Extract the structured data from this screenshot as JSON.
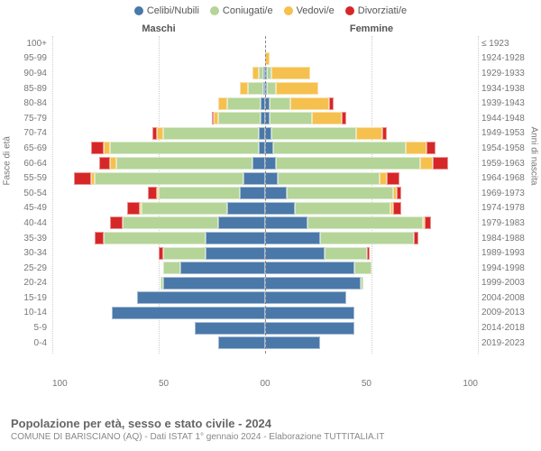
{
  "type": "population-pyramid",
  "legend": [
    {
      "label": "Celibi/Nubili",
      "color": "#4a78a8"
    },
    {
      "label": "Coniugati/e",
      "color": "#b4d498"
    },
    {
      "label": "Vedovi/e",
      "color": "#f5c04e"
    },
    {
      "label": "Divorziati/e",
      "color": "#d62728"
    }
  ],
  "headers": {
    "male": "Maschi",
    "female": "Femmine"
  },
  "age_bands": [
    "100+",
    "95-99",
    "90-94",
    "85-89",
    "80-84",
    "75-79",
    "70-74",
    "65-69",
    "60-64",
    "55-59",
    "50-54",
    "45-49",
    "40-44",
    "35-39",
    "30-34",
    "25-29",
    "20-24",
    "15-19",
    "10-14",
    "5-9",
    "0-4"
  ],
  "birth_years": [
    "≤ 1923",
    "1924-1928",
    "1929-1933",
    "1934-1938",
    "1939-1943",
    "1944-1948",
    "1949-1953",
    "1954-1958",
    "1959-1963",
    "1964-1968",
    "1969-1973",
    "1974-1978",
    "1979-1983",
    "1984-1988",
    "1989-1993",
    "1994-1998",
    "1999-2003",
    "2004-2008",
    "2009-2013",
    "2014-2018",
    "2019-2023"
  ],
  "x_max": 100,
  "x_ticks_left": [
    "100",
    "50",
    "0"
  ],
  "x_ticks_right": [
    "0",
    "50",
    "100"
  ],
  "y_label_left": "Fasce di età",
  "y_label_right": "Anni di nascita",
  "male": [
    [
      0,
      0,
      0,
      0
    ],
    [
      0,
      0,
      0,
      0
    ],
    [
      1,
      2,
      3,
      0
    ],
    [
      1,
      7,
      4,
      0
    ],
    [
      2,
      16,
      4,
      0
    ],
    [
      2,
      20,
      2,
      1
    ],
    [
      3,
      45,
      3,
      2
    ],
    [
      3,
      70,
      3,
      6
    ],
    [
      6,
      64,
      3,
      5
    ],
    [
      10,
      70,
      2,
      8
    ],
    [
      12,
      38,
      1,
      4
    ],
    [
      18,
      40,
      1,
      6
    ],
    [
      22,
      45,
      0,
      6
    ],
    [
      28,
      48,
      0,
      4
    ],
    [
      28,
      20,
      0,
      2
    ],
    [
      40,
      8,
      0,
      0
    ],
    [
      48,
      1,
      0,
      0
    ],
    [
      60,
      0,
      0,
      0
    ],
    [
      72,
      0,
      0,
      0
    ],
    [
      33,
      0,
      0,
      0
    ],
    [
      22,
      0,
      0,
      0
    ]
  ],
  "female": [
    [
      0,
      0,
      0,
      0
    ],
    [
      0,
      0,
      2,
      0
    ],
    [
      1,
      2,
      18,
      0
    ],
    [
      1,
      4,
      20,
      0
    ],
    [
      2,
      10,
      18,
      2
    ],
    [
      2,
      20,
      14,
      2
    ],
    [
      3,
      40,
      12,
      2
    ],
    [
      4,
      62,
      10,
      4
    ],
    [
      5,
      68,
      6,
      7
    ],
    [
      6,
      48,
      3,
      6
    ],
    [
      10,
      50,
      2,
      2
    ],
    [
      14,
      45,
      1,
      4
    ],
    [
      20,
      54,
      1,
      3
    ],
    [
      26,
      44,
      0,
      2
    ],
    [
      28,
      20,
      0,
      1
    ],
    [
      42,
      8,
      0,
      0
    ],
    [
      45,
      1,
      0,
      0
    ],
    [
      38,
      0,
      0,
      0
    ],
    [
      42,
      0,
      0,
      0
    ],
    [
      42,
      0,
      0,
      0
    ],
    [
      26,
      0,
      0,
      0
    ]
  ],
  "colors": {
    "celibi": "#4a78a8",
    "coniugati": "#b4d498",
    "vedovi": "#f5c04e",
    "divorziati": "#d62728",
    "background": "#ffffff",
    "grid": "#cccccc",
    "axis": "#888888",
    "text": "#777777"
  },
  "font_sizes": {
    "legend": 11,
    "axis_tick": 10,
    "header": 11,
    "footer_title": 13,
    "footer_sub": 10
  },
  "footer": {
    "title": "Popolazione per età, sesso e stato civile - 2024",
    "sub": "COMUNE DI BARISCIANO (AQ) - Dati ISTAT 1° gennaio 2024 - Elaborazione TUTTITALIA.IT"
  }
}
